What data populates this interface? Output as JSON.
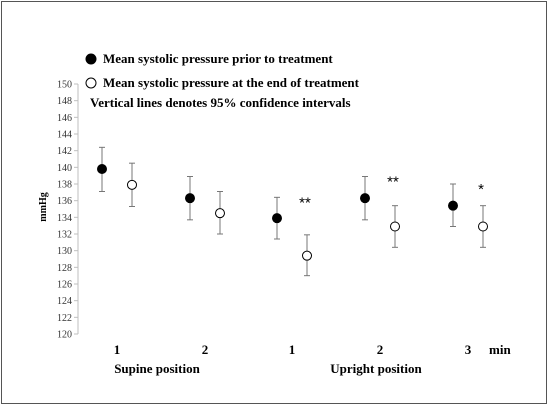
{
  "chart_data": {
    "type": "scatter",
    "ylabel": "mmHg",
    "ylim": [
      120,
      150
    ],
    "ytick_step": 2,
    "x_unit": "min",
    "categories": [
      "1",
      "2",
      "1",
      "2",
      "3"
    ],
    "groups": [
      {
        "label": "Supine position",
        "span": [
          0,
          1
        ]
      },
      {
        "label": "Upright position",
        "span": [
          2,
          4
        ]
      }
    ],
    "legend": {
      "entries": [
        {
          "label": "Mean systolic pressure prior to treatment",
          "marker": "filled"
        },
        {
          "label": "Mean systolic pressure at the end of treatment",
          "marker": "open"
        }
      ],
      "note": "Vertical lines denotes 95% confidence intervals",
      "placement": "top-left"
    },
    "series": [
      {
        "marker": "filled",
        "values": [
          139.8,
          136.3,
          133.9,
          136.3,
          135.4
        ],
        "ci_low": [
          137.1,
          133.7,
          131.4,
          133.7,
          132.9
        ],
        "ci_high": [
          142.4,
          138.9,
          136.4,
          138.9,
          138.0
        ]
      },
      {
        "marker": "open",
        "values": [
          137.9,
          134.5,
          129.4,
          132.9,
          132.9
        ],
        "ci_low": [
          135.3,
          132.0,
          127.0,
          130.4,
          130.4
        ],
        "ci_high": [
          140.5,
          137.1,
          131.9,
          135.4,
          135.4
        ]
      }
    ],
    "annotations": [
      {
        "text": "**",
        "category_index": 2
      },
      {
        "text": "**",
        "category_index": 3
      },
      {
        "text": "*",
        "category_index": 4
      }
    ],
    "grid": false
  }
}
